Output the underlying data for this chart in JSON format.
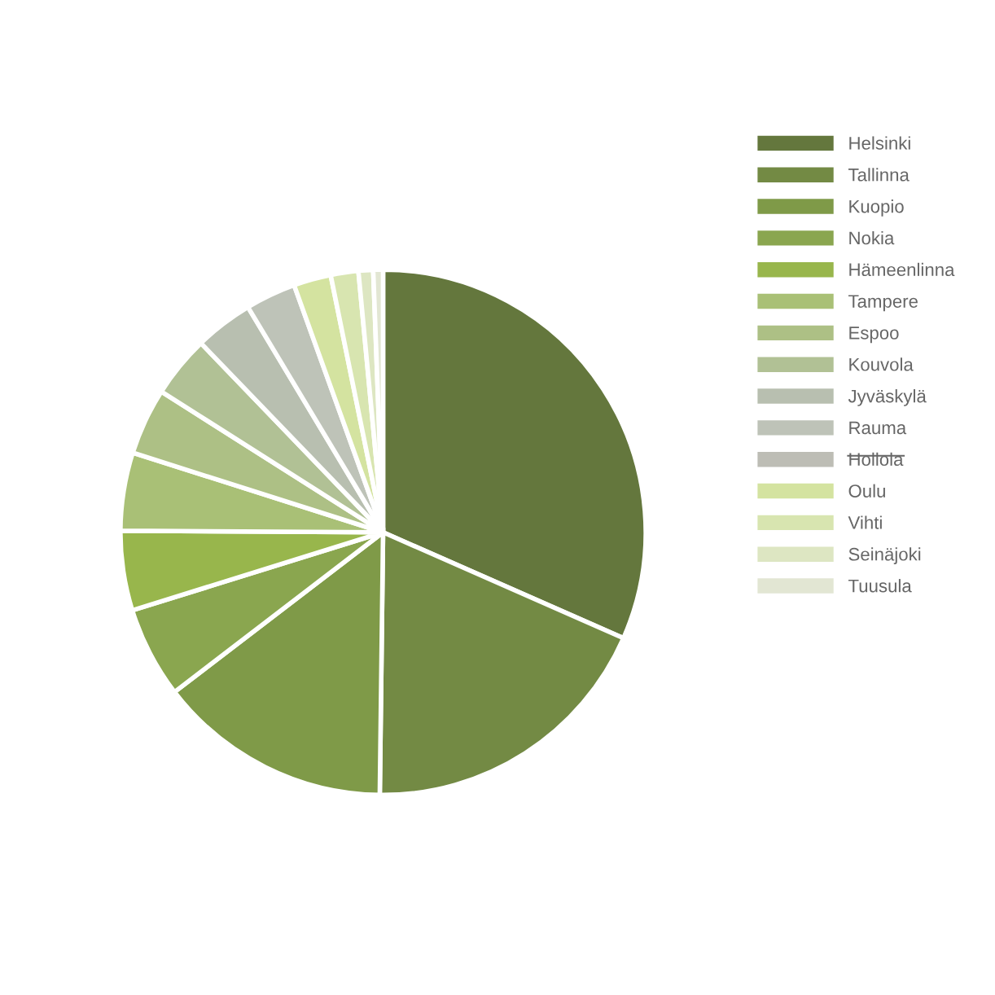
{
  "chart_data": {
    "type": "pie",
    "legend": "right",
    "categories": [
      "Helsinki",
      "Tallinna",
      "Kuopio",
      "Nokia",
      "Hämeenlinna",
      "Tampere",
      "Espoo",
      "Kouvola",
      "Jyväskylä",
      "Rauma",
      "Hollola",
      "Oulu",
      "Vihti",
      "Seinäjoki",
      "Tuusula"
    ],
    "values": [
      31.6,
      18.6,
      14.4,
      5.6,
      4.9,
      4.8,
      4.1,
      3.8,
      3.6,
      3.1,
      null,
      2.3,
      1.7,
      0.9,
      0.6
    ],
    "colors": [
      "#64773d",
      "#738a44",
      "#7f9a48",
      "#8aa64f",
      "#98b64c",
      "#a9c076",
      "#adc085",
      "#b1c195",
      "#b8bfb0",
      "#bec3b8",
      "#bdbdb5",
      "#d4e3a0",
      "#d8e5b0",
      "#dde6c2",
      "#e2e6d3"
    ]
  }
}
